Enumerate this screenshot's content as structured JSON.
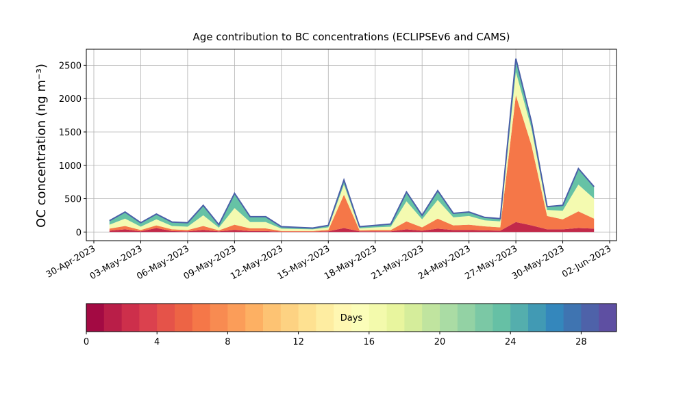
{
  "chart_data": {
    "type": "stacked_area",
    "title": "Age contribution to BC concentrations (ECLIPSEv6 and CAMS)",
    "y_label": "OC concentration (ng m⁻³)",
    "x": [
      "2023-05-01",
      "2023-05-02",
      "2023-05-03",
      "2023-05-04",
      "2023-05-05",
      "2023-05-06",
      "2023-05-07",
      "2023-05-08",
      "2023-05-09",
      "2023-05-10",
      "2023-05-11",
      "2023-05-12",
      "2023-05-13",
      "2023-05-14",
      "2023-05-15",
      "2023-05-16",
      "2023-05-17",
      "2023-05-18",
      "2023-05-19",
      "2023-05-20",
      "2023-05-21",
      "2023-05-22",
      "2023-05-23",
      "2023-05-24",
      "2023-05-25",
      "2023-05-26",
      "2023-05-27",
      "2023-05-28",
      "2023-05-29",
      "2023-05-30",
      "2023-05-31",
      "2023-06-01"
    ],
    "series": [
      {
        "color": "#c2294a",
        "values": [
          20,
          40,
          10,
          60,
          15,
          10,
          30,
          10,
          30,
          15,
          15,
          5,
          5,
          5,
          10,
          60,
          10,
          10,
          10,
          40,
          20,
          50,
          30,
          30,
          25,
          20,
          150,
          100,
          40,
          40,
          60,
          50
        ]
      },
      {
        "color": "#f57748",
        "values": [
          30,
          50,
          20,
          40,
          25,
          20,
          60,
          15,
          80,
          40,
          40,
          10,
          10,
          10,
          20,
          500,
          15,
          20,
          20,
          120,
          50,
          150,
          70,
          80,
          60,
          50,
          1900,
          1200,
          200,
          150,
          250,
          150
        ]
      },
      {
        "color": "#f4fab0",
        "values": [
          60,
          110,
          50,
          90,
          50,
          50,
          160,
          40,
          250,
          95,
          95,
          35,
          30,
          25,
          40,
          150,
          30,
          40,
          50,
          300,
          120,
          280,
          120,
          130,
          90,
          90,
          350,
          250,
          90,
          130,
          400,
          300
        ]
      },
      {
        "color": "#66c2a5",
        "values": [
          60,
          100,
          60,
          80,
          60,
          60,
          150,
          45,
          220,
          80,
          80,
          30,
          25,
          20,
          30,
          70,
          25,
          30,
          40,
          140,
          60,
          140,
          60,
          60,
          45,
          40,
          200,
          100,
          50,
          80,
          240,
          180
        ]
      }
    ],
    "outline_color": "#4a5fa8",
    "xlim": [
      "2023-04-30",
      "2023-06-02"
    ],
    "xticks": [
      {
        "value": "2023-04-30",
        "label": "30-Apr-2023"
      },
      {
        "value": "2023-05-03",
        "label": "03-May-2023"
      },
      {
        "value": "2023-05-06",
        "label": "06-May-2023"
      },
      {
        "value": "2023-05-09",
        "label": "09-May-2023"
      },
      {
        "value": "2023-05-12",
        "label": "12-May-2023"
      },
      {
        "value": "2023-05-15",
        "label": "15-May-2023"
      },
      {
        "value": "2023-05-18",
        "label": "18-May-2023"
      },
      {
        "value": "2023-05-21",
        "label": "21-May-2023"
      },
      {
        "value": "2023-05-24",
        "label": "24-May-2023"
      },
      {
        "value": "2023-05-27",
        "label": "27-May-2023"
      },
      {
        "value": "2023-05-30",
        "label": "30-May-2023"
      },
      {
        "value": "2023-06-02",
        "label": "02-Jun-2023"
      }
    ],
    "ylim": [
      -130,
      2740
    ],
    "yticks": [
      0,
      500,
      1000,
      1500,
      2000,
      2500
    ],
    "grid": true,
    "colorbar": {
      "label": "Days",
      "lim": [
        0,
        30
      ],
      "ticks": [
        0,
        4,
        8,
        12,
        16,
        20,
        24,
        28
      ],
      "colors": [
        "#a30a43",
        "#b91e48",
        "#cd2f4b",
        "#db414e",
        "#e55349",
        "#ed6445",
        "#f57748",
        "#f88b51",
        "#fb9d59",
        "#fdb063",
        "#fdc373",
        "#fdd282",
        "#fee191",
        "#feeda1",
        "#fff7b2",
        "#fbfdb9",
        "#f3faac",
        "#e8f59e",
        "#d5ed9b",
        "#c0e49f",
        "#aadca4",
        "#93d2a4",
        "#7bc8a5",
        "#66c0a5",
        "#54aead",
        "#419ab4",
        "#3487bc",
        "#3f74b1",
        "#4e62a9",
        "#5e4fa2"
      ]
    }
  }
}
